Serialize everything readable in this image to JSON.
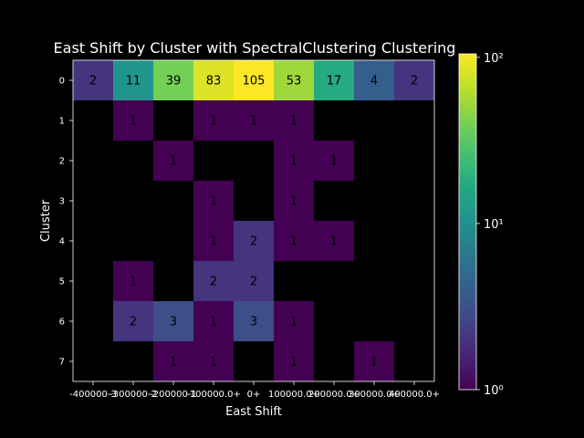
{
  "chart_data": {
    "type": "heatmap",
    "title": "East Shift by Cluster with SpectralClustering Clustering",
    "xlabel": "East Shift",
    "ylabel": "Cluster",
    "x_categories": [
      "-400000-3",
      "-300000-2",
      "-200000-1",
      "-100000.0+",
      "0+",
      "100000.0+",
      "200000.0+",
      "300000.0+",
      "400000.0+"
    ],
    "x_tick_labels_display": [
      "-400000-3",
      "-300000-2",
      "-200000-1",
      "-100000.0+",
      "0+",
      "100000.0+",
      "200000.0+",
      "300000.0+",
      "400000.0+"
    ],
    "y_categories": [
      "0",
      "1",
      "2",
      "3",
      "4",
      "5",
      "6",
      "7"
    ],
    "values": [
      [
        2,
        11,
        39,
        83,
        105,
        53,
        17,
        4,
        2
      ],
      [
        0,
        1,
        0,
        1,
        1,
        1,
        0,
        0,
        0
      ],
      [
        0,
        0,
        1,
        0,
        0,
        1,
        1,
        0,
        0
      ],
      [
        0,
        0,
        0,
        1,
        0,
        1,
        0,
        0,
        0
      ],
      [
        0,
        0,
        0,
        1,
        2,
        1,
        1,
        0,
        0
      ],
      [
        0,
        1,
        0,
        2,
        2,
        0,
        0,
        0,
        0
      ],
      [
        0,
        2,
        3,
        1,
        3,
        1,
        0,
        0,
        0
      ],
      [
        0,
        0,
        1,
        1,
        0,
        1,
        0,
        1,
        0
      ]
    ],
    "colormap": "viridis",
    "color_scale": "log",
    "colorbar": {
      "range": [
        1,
        105
      ],
      "tick_values": [
        1,
        10,
        100
      ],
      "tick_labels": [
        "10⁰",
        "10¹",
        "10²"
      ]
    },
    "empty_cell_color": "#000000",
    "background_color": "#000000",
    "text_color": "#ffffff",
    "annotation_color": "#000000"
  }
}
